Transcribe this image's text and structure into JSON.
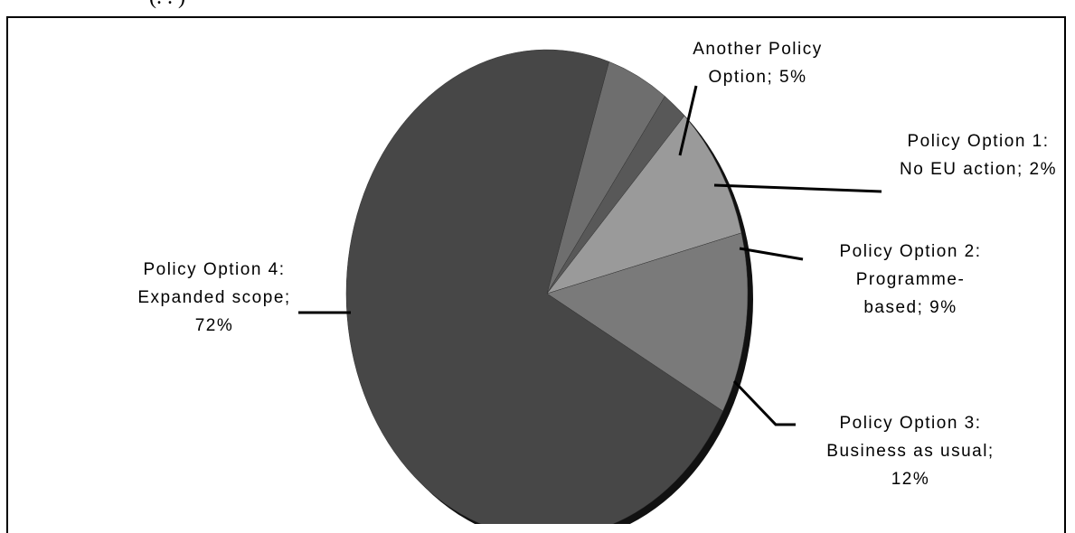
{
  "header_fragment": "(. . )",
  "chart_data": {
    "type": "pie",
    "title": "",
    "slices": [
      {
        "label_lines": [
          "Another Policy",
          "Option; 5%"
        ],
        "value": 5,
        "color": "#6e6e6e"
      },
      {
        "label_lines": [
          "Policy Option 1:",
          "No EU action; 2%"
        ],
        "value": 2,
        "color": "#585858"
      },
      {
        "label_lines": [
          "Policy Option 2:",
          "Programme-",
          "based; 9%"
        ],
        "value": 9,
        "color": "#9a9a9a"
      },
      {
        "label_lines": [
          "Policy Option 3:",
          "Business as usual;",
          "12%"
        ],
        "value": 12,
        "color": "#7a7a7a"
      },
      {
        "label_lines": [
          "Policy Option 4:",
          "Expanded scope;",
          "72%"
        ],
        "value": 72,
        "color": "#474747"
      }
    ]
  }
}
